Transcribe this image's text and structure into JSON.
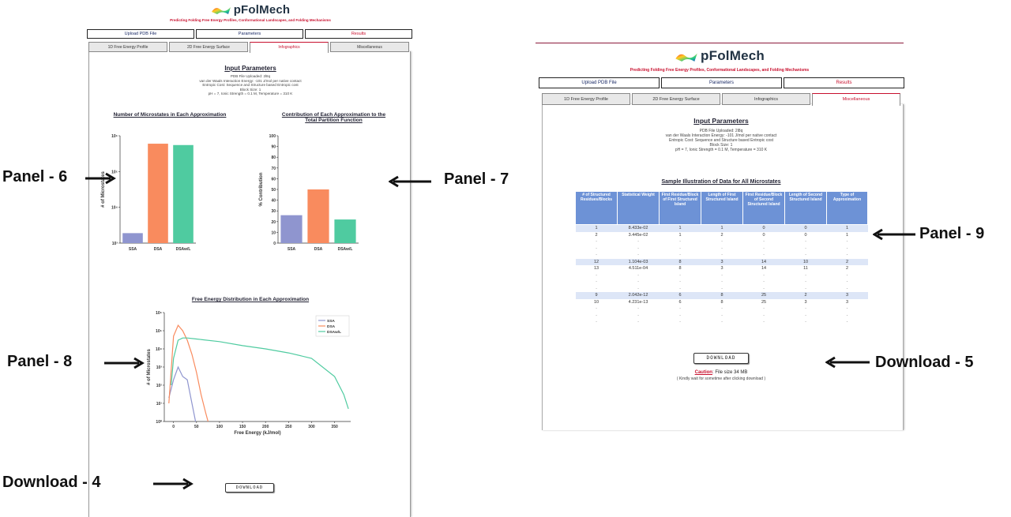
{
  "app": {
    "logo_text": "pFolMech",
    "subtitle": "Predicting Folding Free Energy Profiles, Conformational Landscapes, and Folding Mechanisms"
  },
  "nav": {
    "upload": "Upload PDB File",
    "parameters": "Parameters",
    "results": "Results"
  },
  "tabs": {
    "left": [
      "1D Free Energy Profile",
      "2D Free Energy Surface",
      "Infographics",
      "Miscellaneous"
    ],
    "right": [
      "1D Free Energy Profile",
      "2D Free Energy Surface",
      "Infographics",
      "Miscellaneous"
    ]
  },
  "input_params": {
    "heading": "Input Parameters",
    "lines": [
      "PDB File Uploaded: 2l8q",
      "van der Waals Interaction Energy: -101 J/mol per native contact",
      "Entropic Cost: Sequence and Structure based Entropic cost",
      "Block Size: 1",
      "pH = 7, Ionic Strength = 0.1 M, Temperature = 310 K"
    ]
  },
  "charts": {
    "microstates_title": "Number of Microstates in Each Approximation",
    "microstates_ylabel": "# of Microstates",
    "contribution_title_1": "Contribution of Each Approximation to the",
    "contribution_title_2": "Total Partition Function",
    "contribution_ylabel": "% Contribution",
    "fe_title": "Free Energy Distribution in Each Approximation",
    "fe_ylabel": "# of Microstates",
    "fe_xlabel": "Free Energy (kJ/mol)"
  },
  "chart_data": [
    {
      "type": "bar",
      "title": "Number of Microstates in Each Approximation",
      "ylabel": "# of Microstates",
      "yscale": "log",
      "ylim": [
        1000,
        1000000
      ],
      "yticks": [
        "10³",
        "10⁴",
        "10⁵",
        "10⁶"
      ],
      "categories": [
        "SSA",
        "DSA",
        "DSAw/L"
      ],
      "values": [
        1900,
        600000,
        550000
      ],
      "colors": [
        "#8f95cf",
        "#f98b5e",
        "#4fcba0"
      ]
    },
    {
      "type": "bar",
      "title": "Contribution of Each Approximation to the Total Partition Function",
      "ylabel": "% Contribution",
      "ylim": [
        0,
        100
      ],
      "yticks": [
        "0",
        "10",
        "20",
        "30",
        "40",
        "50",
        "60",
        "70",
        "80",
        "90",
        "100"
      ],
      "categories": [
        "SSA",
        "DSA",
        "DSAw/L"
      ],
      "values": [
        26,
        50,
        22
      ],
      "colors": [
        "#8f95cf",
        "#f98b5e",
        "#4fcba0"
      ]
    },
    {
      "type": "line",
      "title": "Free Energy Distribution in Each Approximation",
      "xlabel": "Free Energy (kJ/mol)",
      "ylabel": "# of Microstates",
      "yscale": "log",
      "xlim": [
        -20,
        385
      ],
      "ylim": [
        1,
        1000000
      ],
      "xticks": [
        "0",
        "50",
        "100",
        "150",
        "200",
        "250",
        "300",
        "350"
      ],
      "yticks": [
        "10⁰",
        "10¹",
        "10²",
        "10³",
        "10⁴",
        "10⁵",
        "10⁶"
      ],
      "legend": "top-right",
      "series": [
        {
          "name": "SSA",
          "color": "#8f95cf",
          "x": [
            -10,
            0,
            10,
            20,
            30,
            40,
            48
          ],
          "y": [
            20,
            200,
            1000,
            300,
            200,
            10,
            1
          ]
        },
        {
          "name": "DSA",
          "color": "#f98b5e",
          "x": [
            -10,
            0,
            10,
            20,
            30,
            40,
            50,
            60,
            70,
            75
          ],
          "y": [
            10,
            50000,
            200000,
            100000,
            30000,
            5000,
            500,
            30,
            3,
            1
          ]
        },
        {
          "name": "DSAw/L",
          "color": "#4fcba0",
          "x": [
            -5,
            0,
            10,
            20,
            30,
            50,
            100,
            150,
            200,
            250,
            300,
            350,
            370,
            380
          ],
          "y": [
            100,
            3000,
            30000,
            40000,
            40000,
            35000,
            25000,
            15000,
            10000,
            6000,
            3000,
            300,
            30,
            5
          ]
        }
      ]
    }
  ],
  "table": {
    "title": "Sample Illustration of Data for All Microstates",
    "headers": [
      "# of Structured Residues/Blocks",
      "Statistical Weight",
      "First Residue/Block of First Structured Island",
      "Length of First Structured Island",
      "First Residue/Block of Second Structured Island",
      "Length of Second Structured Island",
      "Type of Approximation"
    ],
    "rows": [
      {
        "hl": true,
        "cells": [
          "1",
          "8.433e-02",
          "1",
          "1",
          "0",
          "0",
          "1"
        ]
      },
      {
        "hl": false,
        "cells": [
          "2",
          "3.445e-02",
          "1",
          "2",
          "0",
          "0",
          "1"
        ]
      },
      {
        "hl": false,
        "cells": [
          "·",
          "·",
          "·",
          "·",
          "·",
          "·",
          "·"
        ]
      },
      {
        "hl": false,
        "cells": [
          "·",
          "·",
          "·",
          "·",
          "·",
          "·",
          "·"
        ]
      },
      {
        "hl": false,
        "cells": [
          "·",
          "·",
          "·",
          "·",
          "·",
          "·",
          "·"
        ]
      },
      {
        "hl": true,
        "cells": [
          "12",
          "1.104e-03",
          "8",
          "3",
          "14",
          "10",
          "2"
        ]
      },
      {
        "hl": false,
        "cells": [
          "13",
          "4.511e-04",
          "8",
          "3",
          "14",
          "11",
          "2"
        ]
      },
      {
        "hl": false,
        "cells": [
          "·",
          "·",
          "·",
          "·",
          "·",
          "·",
          "·"
        ]
      },
      {
        "hl": false,
        "cells": [
          "·",
          "·",
          "·",
          "·",
          "·",
          "·",
          "·"
        ]
      },
      {
        "hl": false,
        "cells": [
          "·",
          "·",
          "·",
          "·",
          "·",
          "·",
          "·"
        ]
      },
      {
        "hl": true,
        "cells": [
          "9",
          "2.042e-12",
          "6",
          "8",
          "25",
          "2",
          "3"
        ]
      },
      {
        "hl": false,
        "cells": [
          "10",
          "4.231e-13",
          "6",
          "8",
          "25",
          "3",
          "3"
        ]
      },
      {
        "hl": false,
        "cells": [
          "·",
          "·",
          "·",
          "·",
          "·",
          "·",
          "·"
        ]
      },
      {
        "hl": false,
        "cells": [
          "·",
          "·",
          "·",
          "·",
          "·",
          "·",
          "·"
        ]
      },
      {
        "hl": false,
        "cells": [
          "·",
          "·",
          "·",
          "·",
          "·",
          "·",
          "·"
        ]
      }
    ]
  },
  "download": {
    "label": "DOWNLOAD",
    "caution_word": "Caution",
    "caution_text": ": File size 34 MB",
    "caution_note": "( Kindly wait for sometime after clicking download )"
  },
  "annotations": {
    "panel6": "Panel - 6",
    "panel7": "Panel - 7",
    "panel8": "Panel - 8",
    "panel9": "Panel - 9",
    "download4": "Download - 4",
    "download5": "Download - 5"
  }
}
